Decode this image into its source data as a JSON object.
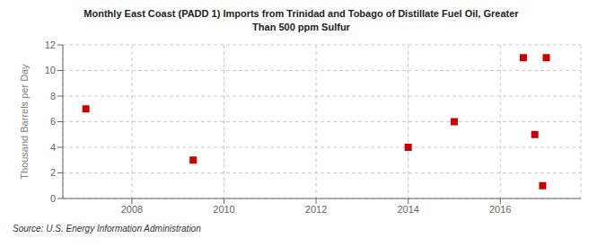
{
  "chart_data": {
    "type": "scatter",
    "title": "Monthly East Coast (PADD 1) Imports from Trinidad and Tobago of Distillate Fuel Oil, Greater\nThan 500 ppm Sulfur",
    "ylabel": "Thousand Barrels per Day",
    "annotations": [
      "Source: U.S. Energy Information Administration"
    ],
    "x": [
      2007.0,
      2009.33,
      2014.0,
      2015.0,
      2016.5,
      2017.0,
      2016.75,
      2016.92
    ],
    "values": [
      7,
      3,
      4,
      6,
      11,
      11,
      5,
      1
    ],
    "color": "#cc0000",
    "marker": "square",
    "xlim": [
      2006.5,
      2017.75
    ],
    "ylim": [
      0,
      12
    ],
    "xticks": [
      2008,
      2010,
      2012,
      2014,
      2016
    ],
    "yticks": [
      0,
      2,
      4,
      6,
      8,
      10,
      12
    ],
    "grid": true
  }
}
